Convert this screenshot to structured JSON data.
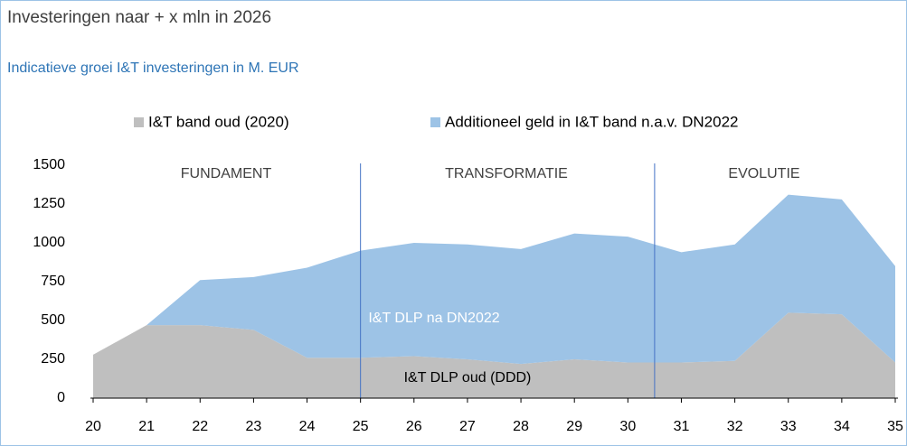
{
  "chart_data": {
    "type": "stacked_area",
    "title": "Investeringen naar + x mln in 2026",
    "subtitle": "Indicatieve groei I&T investeringen in M. EUR",
    "x": [
      20,
      21,
      22,
      23,
      24,
      25,
      26,
      27,
      28,
      29,
      30,
      31,
      32,
      33,
      34,
      35
    ],
    "series": [
      {
        "name": "I&T band oud (2020)",
        "color": "#bfbfbf",
        "values": [
          280,
          470,
          470,
          440,
          260,
          260,
          270,
          250,
          220,
          250,
          230,
          230,
          240,
          550,
          540,
          230
        ]
      },
      {
        "name": "Additioneel geld in I&T band n.a.v. DN2022",
        "color": "#9dc3e6",
        "values": [
          0,
          0,
          290,
          340,
          580,
          690,
          730,
          740,
          740,
          810,
          810,
          710,
          750,
          760,
          740,
          620
        ]
      }
    ],
    "xlim": [
      20,
      35
    ],
    "xticks": [
      20,
      21,
      22,
      23,
      24,
      25,
      26,
      27,
      28,
      29,
      30,
      31,
      32,
      33,
      34,
      35
    ],
    "ylim": [
      0,
      1500
    ],
    "yticks": [
      0,
      250,
      500,
      750,
      1000,
      1250,
      1500
    ],
    "dividers": [
      25,
      30.5
    ],
    "phases": [
      "FUNDAMENT",
      "TRANSFORMATIE",
      "EVOLUTIE"
    ],
    "area_labels": [
      "I&T DLP na DN2022",
      "I&T DLP oud (DDD)"
    ],
    "legend": "top",
    "grid": false
  }
}
